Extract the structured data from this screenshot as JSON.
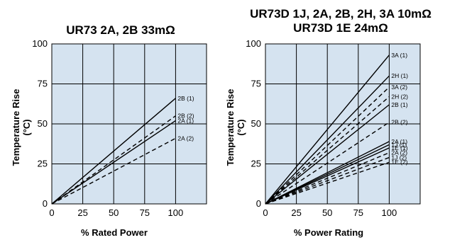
{
  "chart_data": [
    {
      "type": "line",
      "title": "UR73 2A, 2B 33mΩ",
      "xlabel": "% Rated Power",
      "ylabel": "Temperature Rise",
      "ylabel2": "(°C)",
      "xlim": [
        0,
        125
      ],
      "ylim": [
        0,
        100
      ],
      "xticks": [
        0,
        25,
        50,
        75,
        100
      ],
      "yticks": [
        0,
        25,
        50,
        75,
        100
      ],
      "grid": true,
      "background": "#d5e3f0",
      "series": [
        {
          "name": "2B (1)",
          "dashed": false,
          "x": [
            0,
            100
          ],
          "y": [
            0,
            66
          ]
        },
        {
          "name": "2B (2)",
          "dashed": true,
          "x": [
            0,
            100
          ],
          "y": [
            0,
            55
          ]
        },
        {
          "name": "2A (1)",
          "dashed": false,
          "x": [
            0,
            100
          ],
          "y": [
            0,
            52
          ]
        },
        {
          "name": "2A (2)",
          "dashed": true,
          "x": [
            0,
            100
          ],
          "y": [
            0,
            41
          ]
        }
      ]
    },
    {
      "type": "line",
      "title": "UR73D 1J, 2A, 2B, 2H, 3A 10mΩ",
      "title2": "UR73D 1E 24mΩ",
      "xlabel": "% Power Rating",
      "ylabel": "Temperature Rise",
      "ylabel2": "(°C)",
      "xlim": [
        0,
        125
      ],
      "ylim": [
        0,
        100
      ],
      "xticks": [
        0,
        25,
        50,
        75,
        100
      ],
      "yticks": [
        0,
        25,
        50,
        75,
        100
      ],
      "grid": true,
      "background": "#d5e3f0",
      "series": [
        {
          "name": "3A (1)",
          "dashed": false,
          "x": [
            0,
            100
          ],
          "y": [
            0,
            93
          ]
        },
        {
          "name": "2H (1)",
          "dashed": false,
          "x": [
            0,
            100
          ],
          "y": [
            0,
            80
          ]
        },
        {
          "name": "3A (2)",
          "dashed": true,
          "x": [
            0,
            100
          ],
          "y": [
            0,
            73
          ]
        },
        {
          "name": "2H (2)",
          "dashed": true,
          "x": [
            0,
            100
          ],
          "y": [
            0,
            67
          ]
        },
        {
          "name": "2B (1)",
          "dashed": false,
          "x": [
            0,
            100
          ],
          "y": [
            0,
            62
          ]
        },
        {
          "name": "2B (2)",
          "dashed": true,
          "x": [
            0,
            100
          ],
          "y": [
            0,
            51
          ]
        },
        {
          "name": "2A (1)",
          "dashed": false,
          "x": [
            0,
            100
          ],
          "y": [
            0,
            39
          ]
        },
        {
          "name": "1J (1)",
          "dashed": false,
          "x": [
            0,
            100
          ],
          "y": [
            0,
            37
          ]
        },
        {
          "name": "1E (1)",
          "dashed": false,
          "x": [
            0,
            100
          ],
          "y": [
            0,
            35
          ]
        },
        {
          "name": "2A (2)",
          "dashed": true,
          "x": [
            0,
            100
          ],
          "y": [
            0,
            32
          ]
        },
        {
          "name": "1J (2)",
          "dashed": true,
          "x": [
            0,
            100
          ],
          "y": [
            0,
            29
          ]
        },
        {
          "name": "1E (2)",
          "dashed": true,
          "x": [
            0,
            100
          ],
          "y": [
            0,
            26
          ]
        }
      ]
    }
  ]
}
